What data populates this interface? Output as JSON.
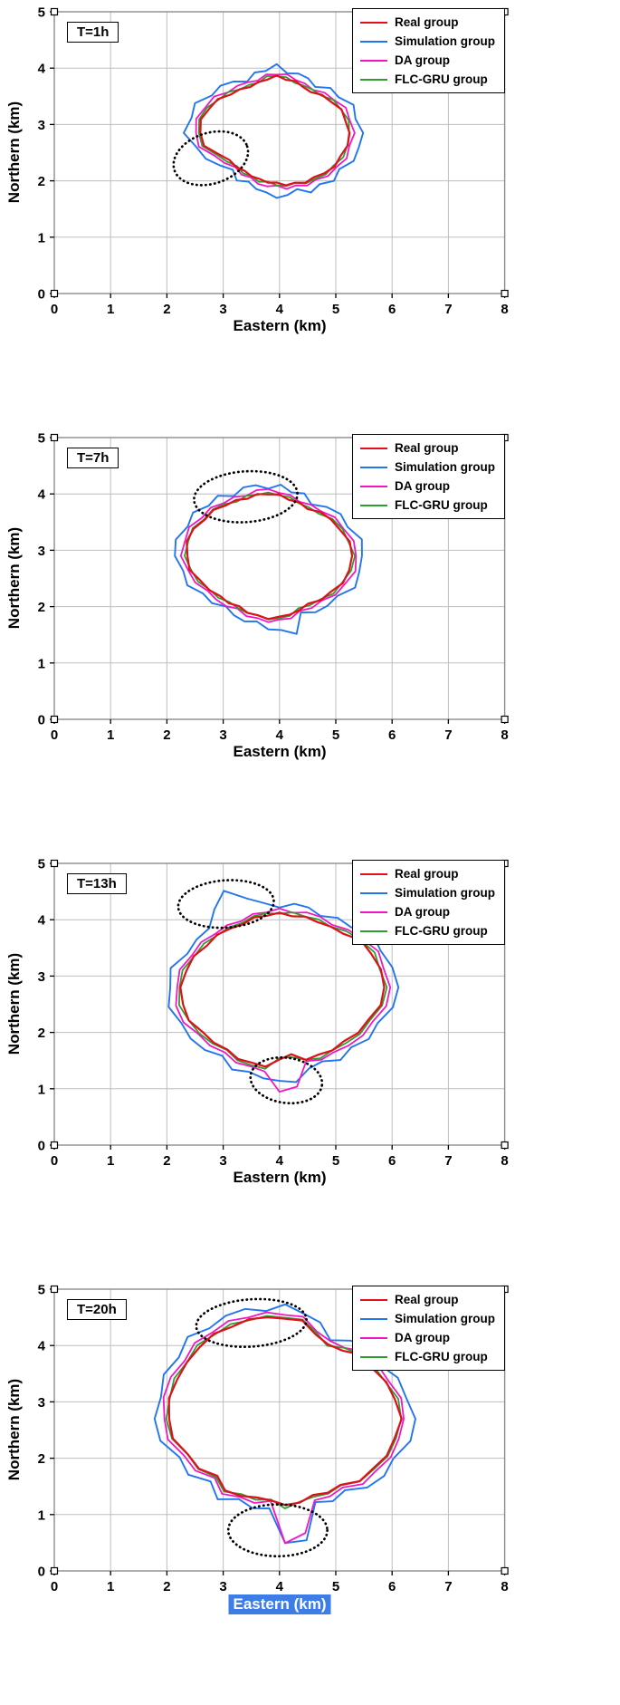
{
  "figure": {
    "background": "#ffffff",
    "selection_color": "#3d7de8"
  },
  "axis": {
    "xlabel": "Eastern (km)",
    "ylabel": "Northern (km)",
    "xlim": [
      0,
      8
    ],
    "ylim": [
      0,
      5
    ],
    "xticks": [
      0,
      1,
      2,
      3,
      4,
      5,
      6,
      7,
      8
    ],
    "yticks": [
      0,
      1,
      2,
      3,
      4,
      5
    ],
    "grid": true,
    "grid_color": "#bdbdc4",
    "frame_color": "#8b8b92",
    "tick_label_color": "#000000"
  },
  "series_style": {
    "Real group": {
      "color": "#e0101a",
      "width": 2.2,
      "jitter": [
        0.015,
        -0.02,
        0.025,
        -0.01,
        0.02,
        -0.025,
        0.01,
        0.03,
        -0.015,
        0.02,
        -0.02,
        0.01,
        -0.01
      ]
    },
    "Simulation group": {
      "color": "#2176f0",
      "width": 1.9,
      "jitter": [
        0.05,
        -0.04,
        0.06,
        -0.03,
        0.05,
        -0.06,
        0.04,
        0.02,
        -0.05,
        0.06,
        -0.02,
        0.04,
        -0.05,
        0.03
      ]
    },
    "DA group": {
      "color": "#f316c5",
      "width": 1.8,
      "jitter": [
        0.03,
        -0.02,
        0.035,
        -0.015,
        0.02,
        -0.03,
        0.025,
        -0.01,
        0.03,
        -0.025,
        0.015,
        -0.02,
        0.03
      ]
    },
    "FLC-GRU group": {
      "color": "#2f9e30",
      "width": 1.8,
      "jitter": [
        -0.02,
        0.015,
        -0.01,
        0.025,
        -0.02,
        0.01,
        0.02,
        -0.025,
        0.015,
        -0.01,
        0.02
      ]
    }
  },
  "chart_data": [
    {
      "type": "contour",
      "time_label": "T=1h",
      "xlabel": "Eastern (km)",
      "ylabel": "Northern (km)",
      "units": "km",
      "center": [
        3.95,
        2.85
      ],
      "angle_step_deg": 10,
      "base_radii_km": [
        1.28,
        1.26,
        1.2,
        1.12,
        1.03,
        0.97,
        0.93,
        0.95,
        0.97,
        1.0,
        0.98,
        0.95,
        0.95,
        1.0,
        1.08,
        1.18,
        1.28,
        1.35,
        1.38,
        1.3,
        1.12,
        0.98,
        0.92,
        0.9,
        0.88,
        0.88,
        0.88,
        0.9,
        0.92,
        0.95,
        1.0,
        1.05,
        1.1,
        1.16,
        1.22,
        1.26
      ],
      "series": [
        {
          "name": "Real group",
          "color": "#e0101a",
          "scale": 1.0,
          "adjust": {
            "20": -0.05
          }
        },
        {
          "name": "Simulation group",
          "color": "#2176f0",
          "scale": 1.16,
          "adjust": {
            "26": 0.1,
            "27": 0.08
          }
        },
        {
          "name": "DA group",
          "color": "#f316c5",
          "scale": 1.06,
          "adjust": {}
        },
        {
          "name": "FLC-GRU group",
          "color": "#2f9e30",
          "scale": 1.02,
          "adjust": {}
        }
      ],
      "highlight_ellipses": [
        {
          "cx": 2.78,
          "cy": 2.4,
          "rx": 0.68,
          "ry": 0.45,
          "tilt_deg": -18
        }
      ],
      "legend_entries": [
        "Real group",
        "Simulation group",
        "DA group",
        "FLC-GRU group"
      ]
    },
    {
      "type": "contour",
      "time_label": "T=7h",
      "xlabel": "Eastern (km)",
      "ylabel": "Northern (km)",
      "units": "km",
      "center": [
        3.8,
        2.9
      ],
      "angle_step_deg": 10,
      "base_radii_km": [
        1.5,
        1.45,
        1.38,
        1.28,
        1.18,
        1.1,
        1.08,
        1.08,
        1.1,
        1.1,
        1.1,
        1.1,
        1.12,
        1.18,
        1.25,
        1.32,
        1.4,
        1.44,
        1.45,
        1.4,
        1.3,
        1.2,
        1.12,
        1.08,
        1.05,
        1.05,
        1.08,
        1.1,
        1.12,
        1.1,
        1.08,
        1.12,
        1.2,
        1.3,
        1.4,
        1.47
      ],
      "series": [
        {
          "name": "Real group",
          "color": "#e0101a",
          "scale": 1.0,
          "adjust": {}
        },
        {
          "name": "Simulation group",
          "color": "#2176f0",
          "scale": 1.13,
          "adjust": {
            "28": 0.1,
            "29": 0.18
          }
        },
        {
          "name": "DA group",
          "color": "#f316c5",
          "scale": 1.05,
          "adjust": {}
        },
        {
          "name": "FLC-GRU group",
          "color": "#2f9e30",
          "scale": 1.01,
          "adjust": {}
        }
      ],
      "highlight_ellipses": [
        {
          "cx": 3.4,
          "cy": 3.95,
          "rx": 0.92,
          "ry": 0.45,
          "tilt_deg": -4
        }
      ],
      "legend_entries": [
        "Real group",
        "Simulation group",
        "DA group",
        "FLC-GRU group"
      ]
    },
    {
      "type": "contour",
      "time_label": "T=13h",
      "xlabel": "Eastern (km)",
      "ylabel": "Northern (km)",
      "units": "km",
      "center": [
        4.0,
        2.8
      ],
      "angle_step_deg": 10,
      "base_radii_km": [
        1.85,
        1.8,
        1.75,
        1.65,
        1.5,
        1.4,
        1.35,
        1.32,
        1.3,
        1.3,
        1.3,
        1.3,
        1.32,
        1.35,
        1.42,
        1.5,
        1.6,
        1.7,
        1.75,
        1.75,
        1.7,
        1.6,
        1.5,
        1.45,
        1.45,
        1.45,
        1.42,
        1.25,
        1.22,
        1.35,
        1.4,
        1.45,
        1.5,
        1.6,
        1.7,
        1.8
      ],
      "series": [
        {
          "name": "Real group",
          "color": "#e0101a",
          "scale": 1.0,
          "adjust": {}
        },
        {
          "name": "Simulation group",
          "color": "#2176f0",
          "scale": 1.12,
          "adjust": {
            "11": 0.25,
            "12": 0.45,
            "13": 0.35,
            "27": 0.32,
            "28": 0.3
          }
        },
        {
          "name": "DA group",
          "color": "#f316c5",
          "scale": 1.05,
          "adjust": {
            "27": 0.55,
            "28": 0.48
          }
        },
        {
          "name": "FLC-GRU group",
          "color": "#2f9e30",
          "scale": 1.02,
          "adjust": {}
        }
      ],
      "highlight_ellipses": [
        {
          "cx": 3.05,
          "cy": 4.28,
          "rx": 0.85,
          "ry": 0.42,
          "tilt_deg": -4
        },
        {
          "cx": 4.12,
          "cy": 1.15,
          "rx": 0.64,
          "ry": 0.4,
          "tilt_deg": 8
        }
      ],
      "legend_entries": [
        "Real group",
        "Simulation group",
        "DA group",
        "FLC-GRU group"
      ]
    },
    {
      "type": "contour",
      "time_label": "T=20h",
      "xlabel": "Eastern (km)",
      "ylabel": "Northern (km)",
      "xlabel_selected": true,
      "units": "km",
      "center": [
        4.1,
        2.7
      ],
      "angle_step_deg": 10,
      "base_radii_km": [
        2.05,
        2.0,
        1.9,
        1.8,
        1.75,
        1.6,
        1.5,
        1.6,
        1.75,
        1.8,
        1.82,
        1.85,
        1.9,
        1.95,
        2.0,
        2.0,
        2.05,
        2.08,
        2.08,
        2.0,
        1.85,
        1.75,
        1.6,
        1.65,
        1.55,
        1.5,
        1.45,
        1.55,
        1.5,
        1.45,
        1.5,
        1.55,
        1.7,
        1.8,
        1.9,
        2.0
      ],
      "series": [
        {
          "name": "Real group",
          "color": "#e0101a",
          "scale": 1.0,
          "adjust": {}
        },
        {
          "name": "Simulation group",
          "color": "#2176f0",
          "scale": 1.1,
          "adjust": {
            "27": 0.55,
            "28": 0.48
          }
        },
        {
          "name": "DA group",
          "color": "#f316c5",
          "scale": 1.04,
          "adjust": {
            "27": 0.58,
            "28": 0.52
          }
        },
        {
          "name": "FLC-GRU group",
          "color": "#2f9e30",
          "scale": 1.01,
          "adjust": {}
        }
      ],
      "highlight_ellipses": [
        {
          "cx": 3.5,
          "cy": 4.4,
          "rx": 0.98,
          "ry": 0.42,
          "tilt_deg": -4
        },
        {
          "cx": 3.97,
          "cy": 0.72,
          "rx": 0.88,
          "ry": 0.46,
          "tilt_deg": 0
        }
      ],
      "legend_entries": [
        "Real group",
        "Simulation group",
        "DA group",
        "FLC-GRU group"
      ]
    }
  ]
}
